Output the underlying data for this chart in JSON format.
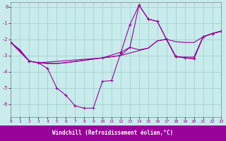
{
  "xlabel": "Windchill (Refroidissement éolien,°C)",
  "background_color": "#c8ecec",
  "grid_color": "#aad4d4",
  "line_color": "#990099",
  "xlim": [
    0,
    23
  ],
  "ylim": [
    -6.8,
    0.3
  ],
  "yticks": [
    0,
    -1,
    -2,
    -3,
    -4,
    -5,
    -6
  ],
  "xticks": [
    0,
    1,
    2,
    3,
    4,
    5,
    6,
    7,
    8,
    9,
    10,
    11,
    12,
    13,
    14,
    15,
    16,
    17,
    18,
    19,
    20,
    21,
    22,
    23
  ],
  "series": [
    {
      "x": [
        0,
        1,
        2,
        3,
        4,
        5,
        6,
        7,
        8,
        9,
        10,
        11,
        12,
        13,
        14,
        15,
        16,
        17,
        18,
        19,
        20,
        21,
        22,
        23
      ],
      "y": [
        -2.2,
        -2.7,
        -3.35,
        -3.45,
        -3.8,
        -5.0,
        -5.45,
        -6.1,
        -6.25,
        -6.25,
        -4.6,
        -4.55,
        -2.85,
        -1.1,
        0.1,
        -0.75,
        -0.9,
        -2.0,
        -3.05,
        -3.15,
        -3.2,
        -1.85,
        -1.65,
        -1.5
      ],
      "marker": "+"
    },
    {
      "x": [
        0,
        1,
        2,
        3,
        4,
        5,
        6,
        7,
        8,
        9,
        10,
        11,
        12,
        13,
        14,
        15,
        16,
        17,
        18,
        19,
        20,
        21,
        22,
        23
      ],
      "y": [
        -2.2,
        -2.65,
        -3.35,
        -3.45,
        -3.5,
        -3.5,
        -3.45,
        -3.38,
        -3.3,
        -3.22,
        -3.15,
        -3.08,
        -3.0,
        -2.85,
        -2.7,
        -2.55,
        -2.1,
        -2.0,
        -2.15,
        -2.2,
        -2.2,
        -1.85,
        -1.65,
        -1.5
      ],
      "marker": null
    },
    {
      "x": [
        0,
        2,
        3,
        5,
        8,
        10,
        12,
        13,
        14,
        15,
        16,
        17,
        18,
        19,
        20,
        21,
        22,
        23
      ],
      "y": [
        -2.2,
        -3.35,
        -3.45,
        -3.5,
        -3.3,
        -3.15,
        -3.0,
        -2.5,
        -2.65,
        -2.55,
        -2.1,
        -2.0,
        -3.1,
        -3.1,
        -3.1,
        -1.85,
        -1.65,
        -1.5
      ],
      "marker": null
    },
    {
      "x": [
        0,
        2,
        3,
        10,
        12,
        13,
        14,
        15,
        16,
        17,
        18,
        19,
        20,
        21,
        22,
        23
      ],
      "y": [
        -2.2,
        -3.35,
        -3.45,
        -3.15,
        -2.8,
        -2.5,
        0.1,
        -0.75,
        -0.9,
        -2.0,
        -3.05,
        -3.15,
        -3.2,
        -1.85,
        -1.65,
        -1.5
      ],
      "marker": "+"
    }
  ]
}
